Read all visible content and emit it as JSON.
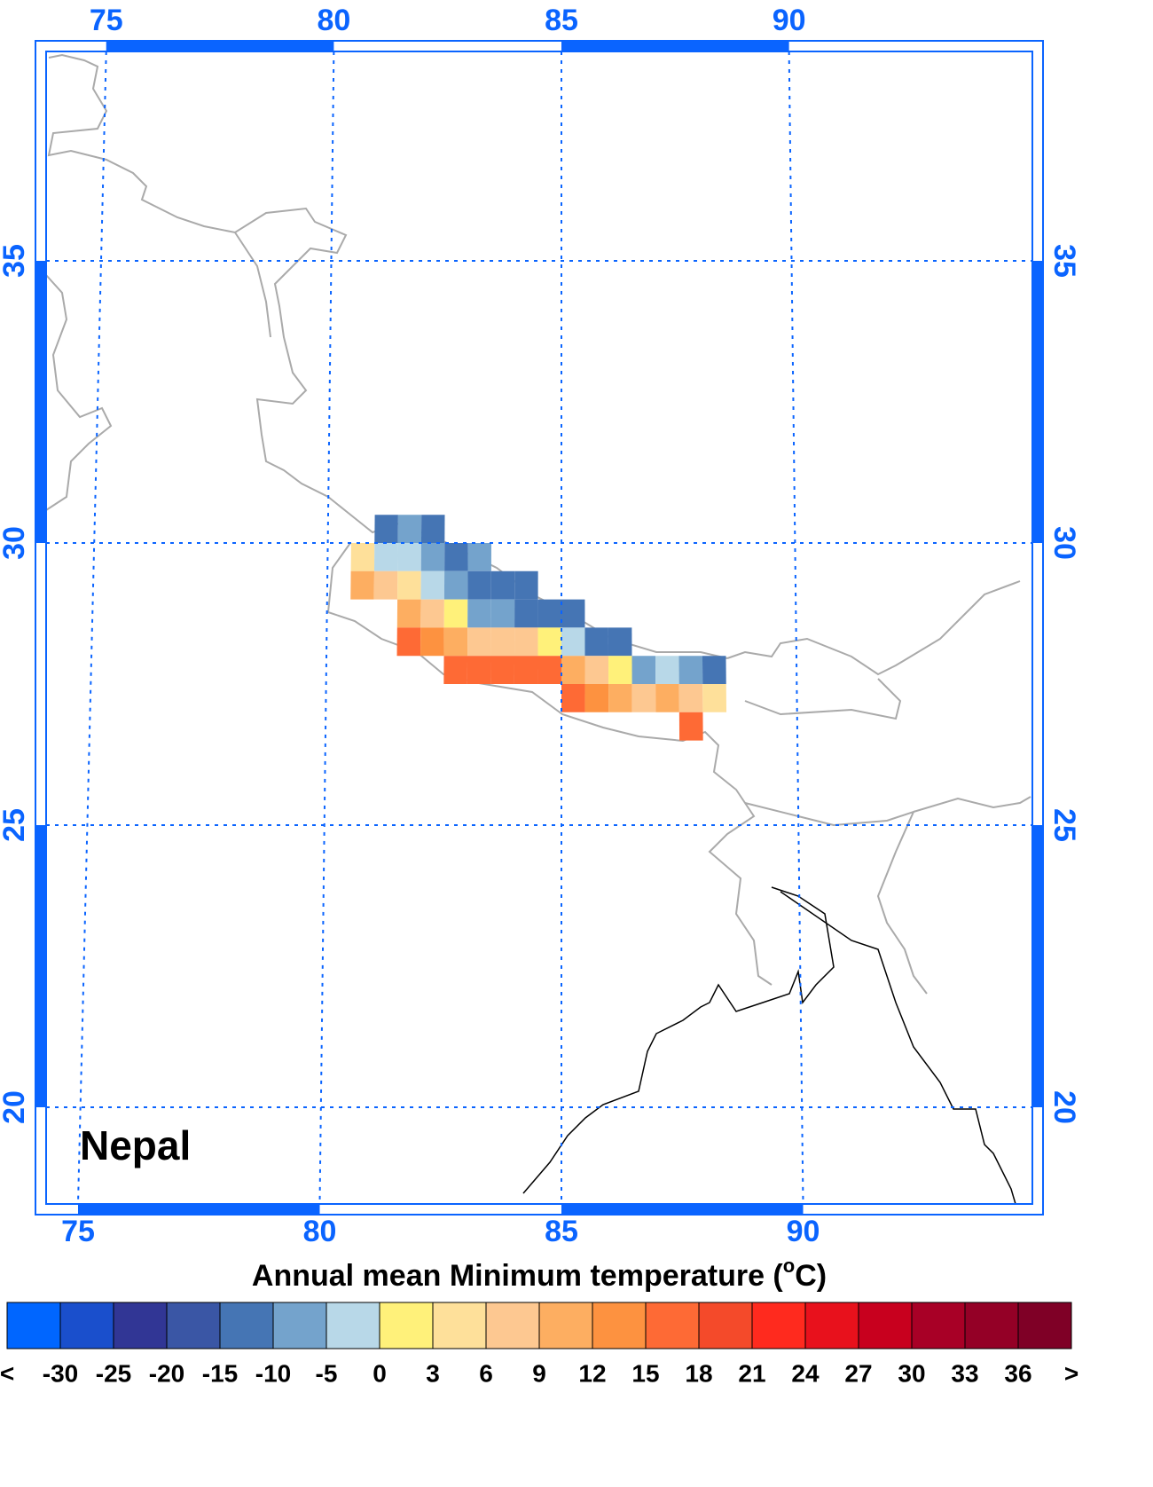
{
  "chart_data": {
    "type": "map",
    "title": "Annual mean Minimum temperature (",
    "title_sup": "o",
    "title_end": "C)",
    "label": "Nepal",
    "lon_ticks": [
      75,
      80,
      85,
      90
    ],
    "lat_ticks": [
      35,
      30,
      25,
      20
    ],
    "colorbar": {
      "low_label": "<",
      "high_label": ">",
      "levels": [
        -30,
        -25,
        -20,
        -15,
        -10,
        -5,
        0,
        3,
        6,
        9,
        12,
        15,
        18,
        21,
        24,
        27,
        30,
        33,
        36
      ],
      "colors": [
        "#0066ff",
        "#1a4fcc",
        "#313695",
        "#3a56a5",
        "#4575b4",
        "#74a3cc",
        "#b8d8e8",
        "#fff17a",
        "#fee09a",
        "#fdc891",
        "#fdae61",
        "#fd9240",
        "#fe6a35",
        "#f44a2a",
        "#ff2a1e",
        "#e8111c",
        "#c8001e",
        "#a80026",
        "#940026",
        "#7f0026"
      ]
    },
    "cells": [
      {
        "lon": 81.0,
        "lat": 30.0,
        "value": -12
      },
      {
        "lon": 81.5,
        "lat": 30.0,
        "value": -7
      },
      {
        "lon": 82.0,
        "lat": 30.0,
        "value": -12
      },
      {
        "lon": 80.5,
        "lat": 29.5,
        "value": 4.5
      },
      {
        "lon": 81.0,
        "lat": 29.5,
        "value": -2
      },
      {
        "lon": 81.5,
        "lat": 29.5,
        "value": -2
      },
      {
        "lon": 82.0,
        "lat": 29.5,
        "value": -7
      },
      {
        "lon": 82.5,
        "lat": 29.5,
        "value": -12
      },
      {
        "lon": 83.0,
        "lat": 29.5,
        "value": -7
      },
      {
        "lon": 80.5,
        "lat": 29.0,
        "value": 10.5
      },
      {
        "lon": 81.0,
        "lat": 29.0,
        "value": 7.5
      },
      {
        "lon": 81.5,
        "lat": 29.0,
        "value": 4.5
      },
      {
        "lon": 82.0,
        "lat": 29.0,
        "value": -2
      },
      {
        "lon": 82.5,
        "lat": 29.0,
        "value": -7
      },
      {
        "lon": 83.0,
        "lat": 29.0,
        "value": -12
      },
      {
        "lon": 83.5,
        "lat": 29.0,
        "value": -12
      },
      {
        "lon": 84.0,
        "lat": 29.0,
        "value": -12
      },
      {
        "lon": 81.5,
        "lat": 28.5,
        "value": 10.5
      },
      {
        "lon": 82.0,
        "lat": 28.5,
        "value": 7.5
      },
      {
        "lon": 82.5,
        "lat": 28.5,
        "value": 1.5
      },
      {
        "lon": 83.0,
        "lat": 28.5,
        "value": -7
      },
      {
        "lon": 83.5,
        "lat": 28.5,
        "value": -7
      },
      {
        "lon": 84.0,
        "lat": 28.5,
        "value": -12
      },
      {
        "lon": 84.5,
        "lat": 28.5,
        "value": -12
      },
      {
        "lon": 85.0,
        "lat": 28.5,
        "value": -12
      },
      {
        "lon": 81.5,
        "lat": 28.0,
        "value": 16.5
      },
      {
        "lon": 82.0,
        "lat": 28.0,
        "value": 13.5
      },
      {
        "lon": 82.5,
        "lat": 28.0,
        "value": 10.5
      },
      {
        "lon": 83.0,
        "lat": 28.0,
        "value": 7.5
      },
      {
        "lon": 83.5,
        "lat": 28.0,
        "value": 7.5
      },
      {
        "lon": 84.0,
        "lat": 28.0,
        "value": 7.5
      },
      {
        "lon": 84.5,
        "lat": 28.0,
        "value": 1.5
      },
      {
        "lon": 85.0,
        "lat": 28.0,
        "value": -2
      },
      {
        "lon": 85.5,
        "lat": 28.0,
        "value": -12
      },
      {
        "lon": 86.0,
        "lat": 28.0,
        "value": -12
      },
      {
        "lon": 82.5,
        "lat": 27.5,
        "value": 16.5
      },
      {
        "lon": 83.0,
        "lat": 27.5,
        "value": 16.5
      },
      {
        "lon": 83.5,
        "lat": 27.5,
        "value": 16.5
      },
      {
        "lon": 84.0,
        "lat": 27.5,
        "value": 16.5
      },
      {
        "lon": 84.5,
        "lat": 27.5,
        "value": 16.5
      },
      {
        "lon": 85.0,
        "lat": 27.5,
        "value": 10.5
      },
      {
        "lon": 85.5,
        "lat": 27.5,
        "value": 7.5
      },
      {
        "lon": 86.0,
        "lat": 27.5,
        "value": 1.5
      },
      {
        "lon": 86.5,
        "lat": 27.5,
        "value": -7
      },
      {
        "lon": 87.0,
        "lat": 27.5,
        "value": -2
      },
      {
        "lon": 87.5,
        "lat": 27.5,
        "value": -7
      },
      {
        "lon": 88.0,
        "lat": 27.5,
        "value": -12
      },
      {
        "lon": 85.0,
        "lat": 27.0,
        "value": 16.5
      },
      {
        "lon": 85.5,
        "lat": 27.0,
        "value": 13.5
      },
      {
        "lon": 86.0,
        "lat": 27.0,
        "value": 10.5
      },
      {
        "lon": 86.5,
        "lat": 27.0,
        "value": 7.5
      },
      {
        "lon": 87.0,
        "lat": 27.0,
        "value": 10.5
      },
      {
        "lon": 87.5,
        "lat": 27.0,
        "value": 7.5
      },
      {
        "lon": 88.0,
        "lat": 27.0,
        "value": 4.5
      },
      {
        "lon": 87.5,
        "lat": 26.5,
        "value": 16.5
      }
    ]
  }
}
